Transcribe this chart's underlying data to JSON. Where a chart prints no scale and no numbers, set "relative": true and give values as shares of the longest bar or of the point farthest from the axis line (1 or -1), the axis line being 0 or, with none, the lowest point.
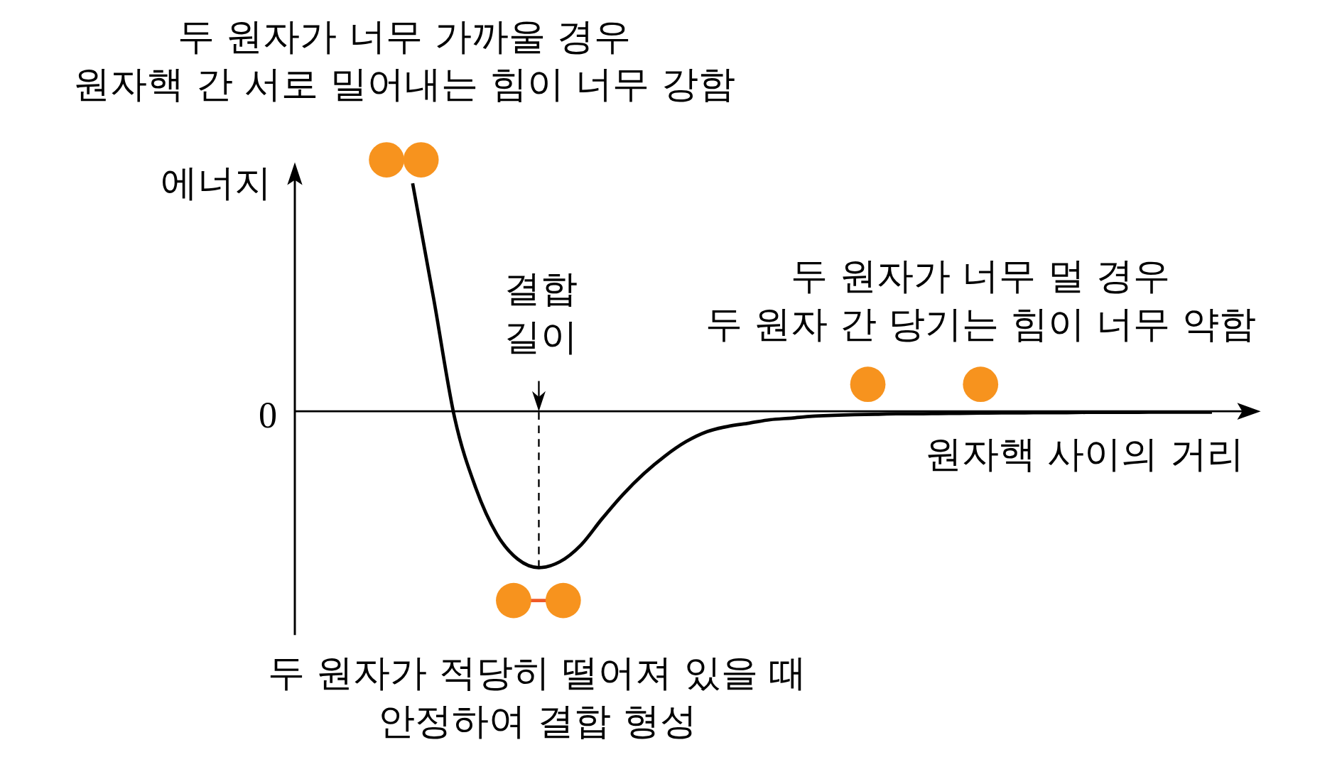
{
  "chart_data": {
    "type": "line",
    "relative": true,
    "ylabel": "에너지",
    "xlabel": "원자핵 사이의 거리",
    "color": "#000000",
    "categories": [
      null,
      null,
      null,
      null,
      null,
      null,
      null,
      null,
      null,
      null,
      null,
      null,
      null,
      null,
      null,
      null,
      null,
      null,
      null,
      null,
      null,
      null,
      null,
      null,
      null,
      null,
      null,
      null,
      null,
      null,
      null,
      null,
      null,
      null,
      null,
      null,
      null,
      null,
      null,
      null,
      null,
      null,
      null,
      null
    ],
    "values": [
      null,
      null,
      null,
      null,
      null,
      1.0,
      0.494,
      -0.03,
      -0.336,
      -0.539,
      -0.649,
      -0.686,
      -0.66,
      -0.587,
      -0.472,
      -0.365,
      -0.273,
      -0.196,
      -0.133,
      -0.089,
      -0.066,
      -0.052,
      -0.037,
      -0.03,
      -0.022,
      -0.018,
      -0.015,
      -0.013,
      -0.011,
      -0.011,
      -0.01,
      -0.009,
      -0.008,
      -0.007,
      -0.007,
      -0.006,
      -0.006,
      -0.005,
      -0.005,
      -0.005,
      -0.004,
      -0.004,
      -0.004,
      -0.004
    ],
    "annotations": [
      "두 원자가 너무 가까울 경우\n원자핵 간 서로 밀어내는 힘이 너무 강함",
      "결합\n길이",
      "두 원자가 너무 멀 경우\n두 원자 간 당기는 힘이 너무 약함",
      "두 원자가 적당히 떨어져 있을  때\n안정하여 결합 형성",
      "0"
    ]
  }
}
